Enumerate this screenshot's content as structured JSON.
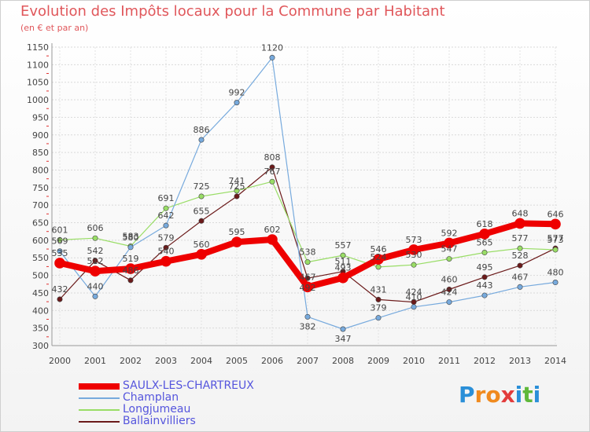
{
  "header": {
    "title": "Evolution des Impôts locaux pour la Commune par Habitant",
    "subtitle": "(en € et par an)"
  },
  "logo": {
    "letters": [
      "P",
      "r",
      "o",
      "x",
      "i",
      "t",
      "i"
    ],
    "colors": [
      "#2a8fd8",
      "#f08a1e",
      "#f08a1e",
      "#e23b3b",
      "#2a8fd8",
      "#5fb83a",
      "#2a8fd8"
    ]
  },
  "chart_data": {
    "type": "line",
    "title": "Evolution des Impôts locaux pour la Commune par Habitant",
    "subtitle": "(en € et par an)",
    "xlabel": "",
    "ylabel": "",
    "ylim": [
      300,
      1150
    ],
    "yticks": [
      300,
      350,
      400,
      450,
      500,
      550,
      600,
      650,
      700,
      750,
      800,
      850,
      900,
      950,
      1000,
      1050,
      1100,
      1150
    ],
    "categories": [
      "2000",
      "2001",
      "2002",
      "2003",
      "2004",
      "2005",
      "2006",
      "2007",
      "2008",
      "2009",
      "2010",
      "2011",
      "2012",
      "2013",
      "2014"
    ],
    "grid": true,
    "legend_position": "bottom-left",
    "series": [
      {
        "name": "Ballainvilliers",
        "color": "#6b1a1a",
        "width": 1.2,
        "values": [
          432,
          542,
          486,
          579,
          655,
          725,
          808,
          492,
          511,
          431,
          424,
          460,
          495,
          528,
          577
        ],
        "labels": [
          "432",
          "542",
          "486",
          "579",
          "655",
          "725",
          "808",
          "492",
          "511",
          "431",
          "424",
          "460",
          "495",
          "528",
          "577"
        ]
      },
      {
        "name": "Longjumeau",
        "color": "#99dd66",
        "width": 1.2,
        "values": [
          601,
          606,
          583,
          691,
          725,
          741,
          767,
          538,
          557,
          524,
          530,
          547,
          565,
          577,
          573
        ],
        "labels": [
          "601",
          "606",
          "583",
          "691",
          "725",
          "741",
          "767",
          "538",
          "557",
          "524",
          "530",
          "547",
          "565",
          "577",
          "573"
        ]
      },
      {
        "name": "Champlan",
        "color": "#77aadd",
        "width": 1.2,
        "values": [
          569,
          440,
          580,
          642,
          886,
          992,
          1120,
          382,
          347,
          379,
          410,
          424,
          443,
          467,
          480
        ],
        "labels": [
          "569",
          "440",
          "580",
          "642",
          "886",
          "992",
          "1120",
          "382",
          "347",
          "379",
          "410",
          "424",
          "443",
          "467",
          "480"
        ]
      },
      {
        "name": "SAULX-LES-CHARTREUX",
        "color": "#ee0000",
        "width": 8,
        "values": [
          535,
          512,
          519,
          540,
          560,
          595,
          602,
          467,
          493,
          546,
          573,
          592,
          618,
          648,
          646
        ],
        "labels": [
          "535",
          "512",
          "519",
          "540",
          "560",
          "595",
          "602",
          "467",
          "493",
          "546",
          "573",
          "592",
          "618",
          "648",
          "646"
        ]
      }
    ],
    "legend": [
      {
        "name": "SAULX-LES-CHARTREUX",
        "color": "#ee0000"
      },
      {
        "name": "Champlan",
        "color": "#77aadd"
      },
      {
        "name": "Longjumeau",
        "color": "#99dd66"
      },
      {
        "name": "Ballainvilliers",
        "color": "#6b1a1a"
      }
    ]
  }
}
